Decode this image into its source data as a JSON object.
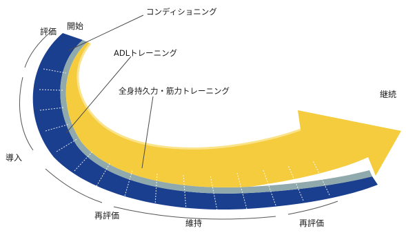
{
  "labels": {
    "start": "開始",
    "evaluation": "評価",
    "introduction": "導入",
    "re_evaluation_1": "再評価",
    "maintenance": "維持",
    "re_evaluation_2": "再評価",
    "continuation": "継続"
  },
  "band_labels": {
    "conditioning": "コンディショニング",
    "adl_training": "ADLトレーニング",
    "endurance_strength": "全身持久力・筋力トレーニング"
  },
  "colors": {
    "navy": "#1b3f8f",
    "gray_blue": "#8fa9ac",
    "yellow": "#f5cc3d",
    "yellow_light": "#fae38a",
    "leader": "#4a4a4a"
  }
}
